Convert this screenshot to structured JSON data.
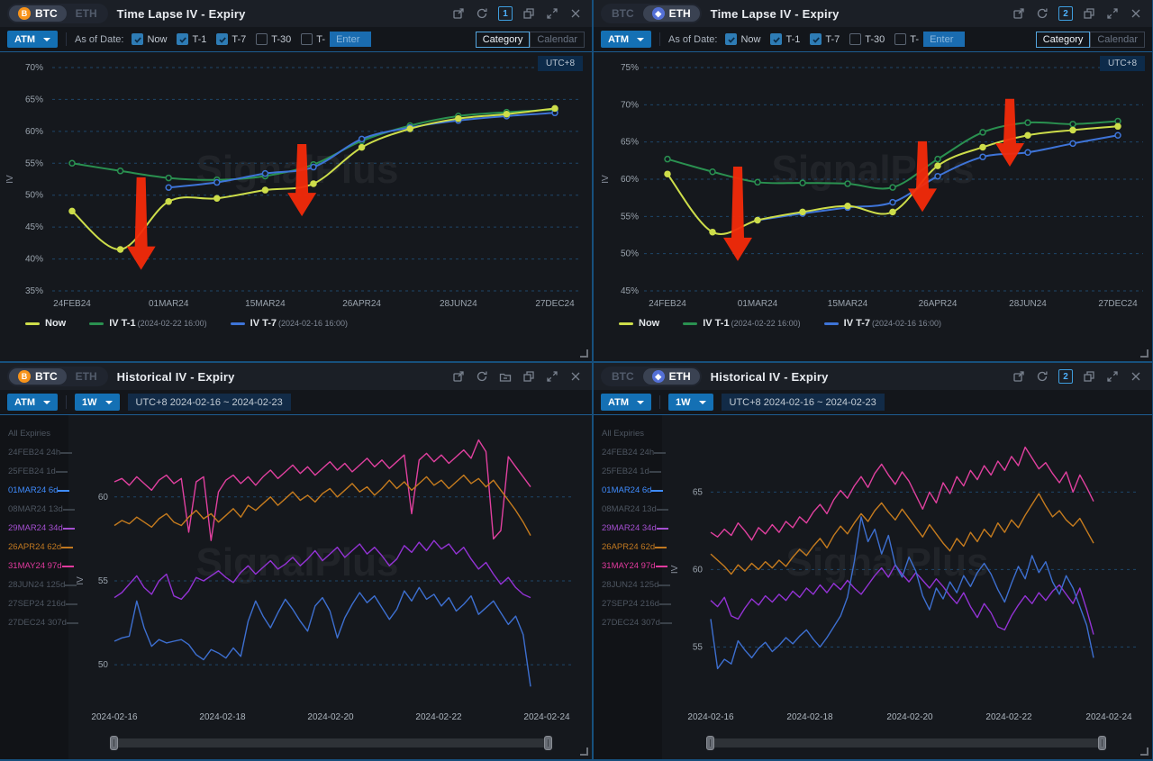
{
  "watermark": "SignalPlus",
  "coins": [
    "BTC",
    "ETH"
  ],
  "colors": {
    "accent_blue": "#1470b4",
    "panel_divider": "#17507d",
    "badge_border": "#3e9ddd",
    "now_yellow": "#cddd4a",
    "t1_green": "#2a9150",
    "t7_blue": "#3e74d8",
    "arrow_red": "#f32a0a",
    "grid_dash": "#1e4669",
    "exp_blue": "#3f8cff",
    "exp_purple": "#a44fd0",
    "exp_orange": "#c07820",
    "exp_pink": "#e23a9e"
  },
  "panels": {
    "tl": {
      "market": "BTC",
      "badge": "1"
    },
    "tr": {
      "market": "ETH",
      "badge": "2"
    },
    "bl": {
      "market": "BTC",
      "badge": null
    },
    "br": {
      "market": "ETH",
      "badge": "2"
    }
  },
  "timelapse": {
    "title": "Time Lapse IV - Expiry",
    "utc_badge": "UTC+8",
    "toolbar": {
      "atm": "ATM",
      "as_of_label": "As of Date:",
      "checkboxes": [
        {
          "label": "Now",
          "checked": true
        },
        {
          "label": "T-1",
          "checked": true
        },
        {
          "label": "T-7",
          "checked": true
        },
        {
          "label": "T-30",
          "checked": false
        },
        {
          "label": "T-",
          "checked": false
        }
      ],
      "enter_placeholder": "Enter",
      "views": [
        "Category",
        "Calendar"
      ],
      "active_view": "Category"
    },
    "legend": [
      {
        "label": "Now",
        "time": "",
        "color": "#cddd4a"
      },
      {
        "label": "IV T-1",
        "time": "(2024-02-22 16:00)",
        "color": "#2a9150"
      },
      {
        "label": "IV T-7",
        "time": "(2024-02-16 16:00)",
        "color": "#3e74d8"
      }
    ]
  },
  "historical": {
    "title": "Historical IV - Expiry",
    "toolbar": {
      "atm": "ATM",
      "period": "1W",
      "range": "UTC+8 2024-02-16 ~ 2024-02-23"
    },
    "expiries": [
      {
        "label": "All Expiries",
        "color": null,
        "dash": false
      },
      {
        "label": "24FEB24 24h",
        "color": null,
        "dash": true
      },
      {
        "label": "25FEB24 1d",
        "color": null,
        "dash": true
      },
      {
        "label": "01MAR24 6d",
        "color": "#3f8cff",
        "dash": true
      },
      {
        "label": "08MAR24 13d",
        "color": null,
        "dash": true
      },
      {
        "label": "29MAR24 34d",
        "color": "#a44fd0",
        "dash": true
      },
      {
        "label": "26APR24 62d",
        "color": "#c07820",
        "dash": true
      },
      {
        "label": "31MAY24 97d",
        "color": "#e23a9e",
        "dash": true
      },
      {
        "label": "28JUN24 125d",
        "color": null,
        "dash": true
      },
      {
        "label": "27SEP24 216d",
        "color": null,
        "dash": true
      },
      {
        "label": "27DEC24 307d",
        "color": null,
        "dash": true
      }
    ]
  },
  "chart_data": [
    {
      "id": "tl",
      "type": "line",
      "title": "BTC Time Lapse IV - Expiry",
      "ylabel": "IV",
      "unit": "%",
      "ylim": [
        35,
        70
      ],
      "yticks": [
        35,
        40,
        45,
        50,
        55,
        60,
        65,
        70
      ],
      "grid": "dashed",
      "x_categories": [
        "24FEB24",
        "25FEB24",
        "01MAR24",
        "08MAR24",
        "15MAR24",
        "29MAR24",
        "26APR24",
        "31MAY24",
        "28JUN24",
        "27SEP24",
        "27DEC24"
      ],
      "x_tick_indices": [
        0,
        2,
        4,
        6,
        8,
        10
      ],
      "x_tick_labels": [
        "24FEB24",
        "01MAR24",
        "15MAR24",
        "26APR24",
        "28JUN24",
        "27DEC24"
      ],
      "series": [
        {
          "name": "IV T-1(2024-02-22 16:00)",
          "color": "#2a9150",
          "marker": "ring",
          "values": [
            55.0,
            53.8,
            52.7,
            52.4,
            53.0,
            54.8,
            58.5,
            60.9,
            62.4,
            63.0,
            63.4
          ]
        },
        {
          "name": "IV T-7(2024-02-16 16:00)",
          "color": "#3e74d8",
          "marker": "ring",
          "values": [
            null,
            null,
            51.2,
            52.0,
            53.4,
            54.4,
            58.8,
            60.6,
            61.7,
            62.4,
            62.9
          ]
        },
        {
          "name": "Now",
          "color": "#cddd4a",
          "marker": "solid",
          "values": [
            47.5,
            41.5,
            49.0,
            49.5,
            50.8,
            51.8,
            57.5,
            60.4,
            62.0,
            62.7,
            63.6
          ]
        }
      ],
      "arrows": [
        {
          "xi": 1.43,
          "from": 52.8,
          "to": 38.3
        },
        {
          "xi": 4.76,
          "from": 58.0,
          "to": 46.7
        }
      ]
    },
    {
      "id": "tr",
      "type": "line",
      "title": "ETH Time Lapse IV - Expiry",
      "ylabel": "IV",
      "unit": "%",
      "ylim": [
        45,
        75
      ],
      "yticks": [
        45,
        50,
        55,
        60,
        65,
        70,
        75
      ],
      "grid": "dashed",
      "x_categories": [
        "24FEB24",
        "25FEB24",
        "01MAR24",
        "08MAR24",
        "15MAR24",
        "29MAR24",
        "26APR24",
        "31MAY24",
        "28JUN24",
        "27SEP24",
        "27DEC24"
      ],
      "x_tick_indices": [
        0,
        2,
        4,
        6,
        8,
        10
      ],
      "x_tick_labels": [
        "24FEB24",
        "01MAR24",
        "15MAR24",
        "26APR24",
        "28JUN24",
        "27DEC24"
      ],
      "series": [
        {
          "name": "IV T-1(2024-02-22 16:00)",
          "color": "#2a9150",
          "marker": "ring",
          "values": [
            62.7,
            61.0,
            59.6,
            59.5,
            59.4,
            58.9,
            62.7,
            66.3,
            67.6,
            67.4,
            67.8
          ]
        },
        {
          "name": "IV T-7(2024-02-16 16:00)",
          "color": "#3e74d8",
          "marker": "ring",
          "values": [
            null,
            null,
            54.5,
            55.4,
            56.2,
            56.9,
            60.4,
            63.0,
            63.6,
            64.8,
            65.9
          ]
        },
        {
          "name": "Now",
          "color": "#cddd4a",
          "marker": "solid",
          "values": [
            60.7,
            52.9,
            54.5,
            55.6,
            56.4,
            55.6,
            61.8,
            64.3,
            65.9,
            66.6,
            67.1
          ]
        }
      ],
      "arrows": [
        {
          "xi": 1.56,
          "from": 61.7,
          "to": 49.0
        },
        {
          "xi": 5.66,
          "from": 65.1,
          "to": 55.6
        },
        {
          "xi": 7.6,
          "from": 70.8,
          "to": 61.7
        }
      ]
    },
    {
      "id": "bl",
      "type": "line",
      "title": "BTC Historical IV - Expiry",
      "ylabel": "IV",
      "ylim": [
        47.0,
        63.8
      ],
      "yticks": [
        50,
        55,
        60
      ],
      "grid": "dashed",
      "x_tick_labels": [
        "2024-02-16",
        "2024-02-18",
        "2024-02-20",
        "2024-02-22",
        "2024-02-24"
      ],
      "series": [
        {
          "name": "31MAY24 97d",
          "color": "#e0409f",
          "values": [
            60.9,
            61.1,
            60.7,
            61.2,
            60.8,
            60.4,
            61.0,
            61.3,
            60.8,
            61.1,
            57.9,
            60.9,
            61.2,
            57.4,
            60.3,
            61.0,
            61.3,
            60.8,
            61.2,
            60.7,
            61.2,
            61.6,
            61.1,
            61.5,
            61.9,
            61.4,
            61.8,
            61.3,
            61.7,
            62.1,
            61.6,
            62.0,
            61.5,
            61.9,
            62.3,
            61.8,
            62.2,
            61.7,
            62.1,
            62.5,
            59.0,
            62.2,
            62.6,
            62.1,
            62.5,
            62.0,
            62.4,
            62.8,
            62.3,
            63.4,
            62.7,
            57.5,
            58.0,
            62.4,
            61.8,
            61.2,
            60.6
          ]
        },
        {
          "name": "26APR24 62d",
          "color": "#c57b1e",
          "values": [
            58.3,
            58.6,
            58.4,
            58.8,
            58.5,
            58.2,
            58.7,
            59.0,
            58.5,
            58.3,
            58.8,
            59.2,
            58.7,
            59.0,
            58.5,
            58.9,
            59.3,
            58.8,
            59.5,
            59.2,
            59.6,
            60.0,
            59.5,
            59.9,
            60.3,
            59.8,
            60.1,
            59.7,
            60.2,
            60.5,
            60.0,
            60.4,
            60.8,
            60.3,
            60.6,
            60.1,
            60.5,
            61.0,
            60.5,
            60.9,
            60.4,
            60.8,
            61.2,
            60.7,
            61.0,
            60.5,
            60.9,
            61.3,
            60.8,
            61.1,
            60.6,
            61.0,
            60.4,
            59.8,
            59.2,
            58.5,
            57.7
          ]
        },
        {
          "name": "29MAR24 34d",
          "color": "#9333d4",
          "values": [
            54.0,
            54.3,
            54.8,
            55.3,
            54.6,
            54.2,
            55.0,
            55.4,
            54.1,
            53.9,
            54.4,
            55.2,
            55.0,
            55.3,
            55.6,
            55.2,
            54.9,
            55.5,
            55.9,
            55.4,
            55.8,
            56.2,
            55.7,
            56.0,
            56.4,
            55.9,
            56.3,
            56.8,
            56.2,
            56.6,
            57.0,
            56.4,
            56.8,
            57.2,
            56.6,
            57.0,
            56.5,
            55.9,
            56.3,
            57.1,
            56.7,
            57.3,
            56.8,
            57.4,
            56.9,
            57.2,
            56.6,
            57.0,
            56.3,
            55.7,
            56.1,
            55.4,
            54.8,
            55.2,
            54.6,
            54.2,
            54.0
          ]
        },
        {
          "name": "01MAR24 6d",
          "color": "#3d6fd0",
          "values": [
            51.4,
            51.6,
            51.7,
            53.8,
            52.2,
            51.1,
            51.5,
            51.3,
            51.4,
            51.5,
            51.2,
            50.6,
            50.3,
            50.9,
            50.7,
            50.4,
            51.0,
            50.5,
            52.6,
            53.8,
            52.9,
            52.2,
            53.1,
            53.9,
            53.3,
            52.6,
            52.0,
            53.5,
            54.0,
            53.2,
            51.6,
            52.8,
            53.6,
            54.3,
            53.7,
            54.1,
            53.4,
            52.7,
            53.3,
            54.4,
            53.8,
            54.6,
            53.9,
            54.2,
            53.5,
            54.0,
            53.2,
            53.6,
            54.1,
            53.0,
            53.4,
            53.8,
            53.1,
            52.4,
            52.9,
            51.8,
            48.7
          ]
        }
      ]
    },
    {
      "id": "br",
      "type": "line",
      "title": "ETH Historical IV - Expiry",
      "ylabel": "IV",
      "ylim": [
        50.6,
        68.8
      ],
      "yticks": [
        55,
        60,
        65
      ],
      "grid": "dashed",
      "x_tick_labels": [
        "2024-02-16",
        "2024-02-18",
        "2024-02-20",
        "2024-02-22",
        "2024-02-24"
      ],
      "series": [
        {
          "name": "31MAY24 97d",
          "color": "#e0409f",
          "values": [
            62.4,
            62.1,
            62.6,
            62.2,
            63.0,
            62.5,
            61.9,
            62.7,
            62.3,
            62.9,
            62.4,
            63.1,
            62.7,
            63.4,
            63.0,
            63.7,
            64.2,
            63.6,
            64.5,
            65.1,
            64.6,
            65.4,
            66.0,
            65.3,
            66.2,
            66.8,
            66.1,
            65.5,
            66.3,
            65.7,
            64.8,
            63.9,
            65.0,
            64.3,
            65.6,
            64.9,
            66.0,
            65.4,
            66.4,
            65.8,
            66.7,
            66.1,
            67.0,
            66.4,
            67.3,
            66.7,
            67.9,
            67.2,
            66.5,
            66.9,
            66.2,
            65.6,
            66.3,
            65.0,
            66.1,
            65.3,
            64.4
          ]
        },
        {
          "name": "26APR24 62d",
          "color": "#c57b1e",
          "values": [
            61.0,
            60.6,
            60.2,
            59.7,
            60.3,
            59.9,
            60.4,
            60.0,
            60.5,
            60.1,
            60.6,
            60.2,
            60.8,
            61.3,
            60.9,
            61.5,
            62.0,
            61.4,
            62.2,
            62.8,
            62.3,
            63.0,
            63.6,
            63.1,
            63.8,
            64.3,
            63.7,
            63.2,
            63.9,
            63.3,
            62.7,
            62.1,
            62.9,
            62.3,
            61.7,
            61.2,
            62.0,
            61.5,
            62.4,
            61.8,
            62.6,
            62.1,
            63.0,
            62.4,
            63.2,
            62.7,
            63.5,
            64.2,
            64.9,
            64.1,
            63.4,
            63.8,
            63.2,
            62.8,
            63.3,
            62.5,
            61.7
          ]
        },
        {
          "name": "29MAR24 34d",
          "color": "#9333d4",
          "values": [
            58.0,
            57.6,
            58.2,
            57.0,
            56.8,
            57.5,
            58.1,
            57.7,
            58.3,
            57.9,
            58.4,
            58.0,
            58.6,
            58.2,
            58.8,
            58.4,
            59.0,
            58.5,
            59.1,
            58.7,
            59.3,
            58.8,
            58.4,
            59.0,
            59.6,
            60.1,
            59.5,
            60.3,
            59.7,
            59.2,
            59.8,
            59.3,
            58.8,
            59.4,
            58.9,
            58.3,
            57.8,
            58.5,
            57.6,
            56.9,
            57.8,
            57.2,
            56.3,
            56.1,
            57.0,
            57.7,
            58.3,
            57.8,
            58.5,
            58.0,
            58.6,
            59.0,
            58.4,
            57.8,
            58.8,
            57.4,
            55.8
          ]
        },
        {
          "name": "01MAR24 6d",
          "color": "#3d6fd0",
          "values": [
            56.8,
            53.6,
            54.2,
            53.9,
            55.4,
            54.8,
            54.3,
            54.9,
            55.3,
            54.7,
            55.1,
            55.6,
            55.2,
            55.7,
            56.1,
            55.5,
            55.0,
            55.6,
            56.3,
            57.0,
            58.2,
            60.5,
            63.4,
            61.8,
            62.6,
            61.0,
            62.2,
            60.3,
            59.5,
            60.8,
            59.9,
            58.3,
            57.4,
            58.8,
            58.1,
            59.2,
            58.5,
            59.6,
            58.9,
            59.8,
            60.4,
            59.7,
            58.7,
            57.9,
            59.1,
            60.2,
            59.4,
            60.9,
            59.8,
            60.5,
            59.2,
            58.4,
            59.6,
            58.8,
            57.6,
            56.4,
            54.3
          ]
        }
      ]
    }
  ]
}
